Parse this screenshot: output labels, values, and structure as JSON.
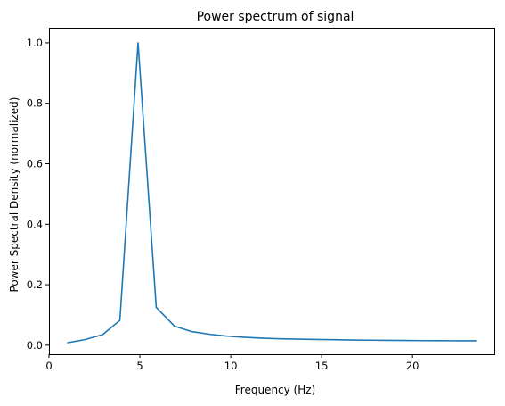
{
  "chart_data": {
    "type": "line",
    "title": "Power spectrum of signal",
    "xlabel": "Frequency (Hz)",
    "ylabel": "Power Spectral Density (normalized)",
    "xlim": [
      0,
      24.5
    ],
    "ylim": [
      -0.03,
      1.05
    ],
    "xticks": [
      0,
      5,
      10,
      15,
      20
    ],
    "yticks": [
      0.0,
      0.2,
      0.4,
      0.6,
      0.8,
      1.0
    ],
    "xtick_labels": [
      "0",
      "5",
      "10",
      "15",
      "20"
    ],
    "ytick_labels": [
      "0.0",
      "0.2",
      "0.4",
      "0.6",
      "0.8",
      "1.0"
    ],
    "grid": false,
    "series": [
      {
        "color": "#1f77b4",
        "x": [
          1.0,
          1.95,
          2.95,
          3.9,
          4.9,
          5.9,
          6.9,
          7.85,
          8.85,
          9.8,
          10.8,
          11.8,
          12.75,
          13.75,
          14.7,
          15.7,
          16.7,
          17.65,
          18.65,
          19.6,
          20.6,
          21.6,
          22.55,
          23.55
        ],
        "y": [
          0.008,
          0.018,
          0.035,
          0.082,
          1.0,
          0.125,
          0.063,
          0.045,
          0.036,
          0.03,
          0.026,
          0.023,
          0.021,
          0.02,
          0.019,
          0.018,
          0.017,
          0.0165,
          0.016,
          0.0155,
          0.015,
          0.0148,
          0.0146,
          0.0145
        ]
      }
    ]
  }
}
